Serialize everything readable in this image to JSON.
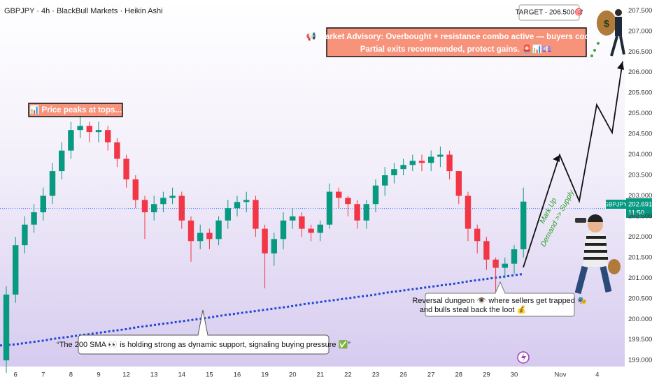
{
  "chart_data": {
    "type": "candlestick",
    "title": "GBPJPY · 4h · BlackBull Markets · Heikin Ashi",
    "categories": [
      null,
      "6",
      null,
      null,
      "7",
      null,
      null,
      "8",
      null,
      null,
      "9",
      null,
      null,
      "12",
      null,
      null,
      "13",
      null,
      null,
      "14",
      null,
      null,
      "15",
      null,
      null,
      "16",
      null,
      null,
      "19",
      null,
      null,
      "20",
      null,
      null,
      "21",
      null,
      null,
      "22",
      null,
      null,
      "23",
      null,
      null,
      "26",
      null,
      null,
      "27",
      null,
      null,
      "28",
      null,
      null,
      "29",
      null,
      null,
      "30",
      null,
      null,
      null,
      null,
      "Nov",
      null,
      null,
      null,
      "4",
      null,
      null
    ],
    "open": [
      199.0,
      200.6,
      201.8,
      202.3,
      202.6,
      203.0,
      203.6,
      204.1,
      204.6,
      204.7,
      204.55,
      204.6,
      204.3,
      203.9,
      203.4,
      202.9,
      202.6,
      202.8,
      202.95,
      203.0,
      202.4,
      201.9,
      202.1,
      201.95,
      202.4,
      202.7,
      202.85,
      202.9,
      202.2,
      201.6,
      201.95,
      202.4,
      202.5,
      202.2,
      202.1,
      202.3,
      203.1,
      202.95,
      202.8,
      202.4,
      202.8,
      203.25,
      203.5,
      203.65,
      203.75,
      203.85,
      203.8,
      203.95,
      204.0,
      203.6,
      203.0,
      202.2,
      201.9,
      201.45,
      201.25,
      201.35,
      201.7,
      null,
      null,
      null,
      null,
      null,
      null,
      null,
      null,
      null,
      null
    ],
    "high": [
      200.8,
      202.0,
      202.5,
      202.8,
      203.2,
      203.8,
      204.3,
      204.8,
      204.95,
      204.8,
      204.8,
      204.7,
      204.4,
      204.0,
      203.5,
      203.0,
      203.0,
      203.1,
      203.2,
      203.1,
      202.5,
      202.3,
      202.2,
      202.5,
      202.9,
      203.0,
      203.1,
      203.0,
      202.3,
      202.1,
      202.6,
      202.7,
      202.6,
      202.3,
      202.4,
      203.3,
      203.2,
      203.0,
      202.9,
      202.9,
      203.4,
      203.7,
      203.8,
      203.9,
      204.0,
      204.0,
      204.1,
      204.2,
      204.1,
      203.6,
      203.1,
      202.3,
      202.0,
      201.5,
      201.5,
      201.8,
      203.2,
      null,
      null,
      null,
      null,
      null,
      null,
      null,
      null,
      null,
      null
    ],
    "low": [
      198.7,
      200.4,
      201.6,
      202.1,
      202.4,
      202.8,
      203.4,
      203.9,
      204.4,
      204.3,
      204.3,
      204.1,
      203.7,
      203.2,
      202.7,
      201.95,
      202.4,
      202.6,
      202.8,
      202.2,
      201.4,
      201.7,
      201.7,
      201.8,
      202.2,
      202.5,
      202.6,
      202.0,
      200.75,
      201.3,
      201.7,
      202.2,
      202.0,
      201.9,
      201.9,
      202.2,
      202.7,
      202.5,
      202.2,
      202.2,
      202.6,
      203.0,
      203.3,
      203.5,
      203.6,
      203.6,
      203.6,
      203.7,
      203.4,
      202.8,
      201.9,
      201.6,
      201.2,
      200.58,
      201.0,
      201.1,
      201.5,
      null,
      null,
      null,
      null,
      null,
      null,
      null,
      null,
      null,
      null
    ],
    "close": [
      200.6,
      201.8,
      202.3,
      202.6,
      203.0,
      203.6,
      204.1,
      204.6,
      204.7,
      204.55,
      204.6,
      204.3,
      203.9,
      203.4,
      202.9,
      202.6,
      202.8,
      202.95,
      203.0,
      202.4,
      201.9,
      202.1,
      201.95,
      202.4,
      202.7,
      202.85,
      202.9,
      202.2,
      201.6,
      201.95,
      202.4,
      202.5,
      202.2,
      202.1,
      202.3,
      203.1,
      202.95,
      202.8,
      202.4,
      202.8,
      203.25,
      203.5,
      203.65,
      203.75,
      203.85,
      203.8,
      203.95,
      204.0,
      203.6,
      203.0,
      202.2,
      201.9,
      201.45,
      201.25,
      201.35,
      201.7,
      202.86,
      null,
      null,
      null,
      null,
      null,
      null,
      null,
      null,
      null,
      null
    ],
    "up_color": "#089981",
    "down_color": "#f23645",
    "sma_values": [
      199.36,
      199.39,
      199.42,
      199.45,
      199.48,
      199.52,
      199.55,
      199.58,
      199.61,
      199.64,
      199.67,
      199.7,
      199.73,
      199.76,
      199.8,
      199.83,
      199.86,
      199.89,
      199.92,
      199.95,
      199.98,
      200.01,
      200.04,
      200.08,
      200.11,
      200.14,
      200.17,
      200.2,
      200.23,
      200.26,
      200.29,
      200.32,
      200.36,
      200.39,
      200.42,
      200.45,
      200.48,
      200.51,
      200.54,
      200.57,
      200.6,
      200.64,
      200.67,
      200.7,
      200.73,
      200.76,
      200.79,
      200.82,
      200.85,
      200.88,
      200.92,
      200.95,
      200.98,
      201.01,
      201.04,
      201.07,
      201.1,
      null,
      null,
      null,
      null,
      null,
      null,
      null,
      null,
      null,
      null
    ],
    "sma_color": "#1f47d6",
    "ylim": [
      198.85,
      207.76
    ],
    "yticks": [
      {
        "value": 199,
        "label": "199.000"
      },
      {
        "value": 199.5,
        "label": "199.500"
      },
      {
        "value": 200,
        "label": "200.000"
      },
      {
        "value": 200.5,
        "label": "200.500"
      },
      {
        "value": 201,
        "label": "201.000"
      },
      {
        "value": 201.5,
        "label": "201.500"
      },
      {
        "value": 202,
        "label": "202.000"
      },
      {
        "value": 202.5,
        "label": "202.500"
      },
      {
        "value": 203,
        "label": "203.000"
      },
      {
        "value": 203.5,
        "label": "203.500"
      },
      {
        "value": 204,
        "label": "204.000"
      },
      {
        "value": 204.5,
        "label": "204.500"
      },
      {
        "value": 205,
        "label": "205.000"
      },
      {
        "value": 205.5,
        "label": "205.500"
      },
      {
        "value": 206,
        "label": "206.000"
      },
      {
        "value": 206.5,
        "label": "206.500"
      },
      {
        "value": 207,
        "label": "207.000"
      },
      {
        "value": 207.5,
        "label": "207.500"
      }
    ],
    "grid": false,
    "last_price": 202.691,
    "symbol_tag": "GBPJPY",
    "countdown": "11:50",
    "annotations": {
      "target": "TARGET - 206.500🎯",
      "advisory": [
        "📢 Market Advisory: Overbought + resistance combo active — buyers cooling.",
        "Partial exits recommended, protect gains. 🚨📊💷"
      ],
      "peaks": "📊 Price peaks at tops...",
      "markup": "Mark Up",
      "demand": "Demand >> Supply",
      "reversal": [
        "Reversal dungeon 👁️ where sellers get trapped 🎭",
        "and bulls steal back the loot 💰"
      ],
      "sma_note": "“The 200 SMA 👀 is holding strong as dynamic support, signaling buying pressure ✅”"
    }
  }
}
